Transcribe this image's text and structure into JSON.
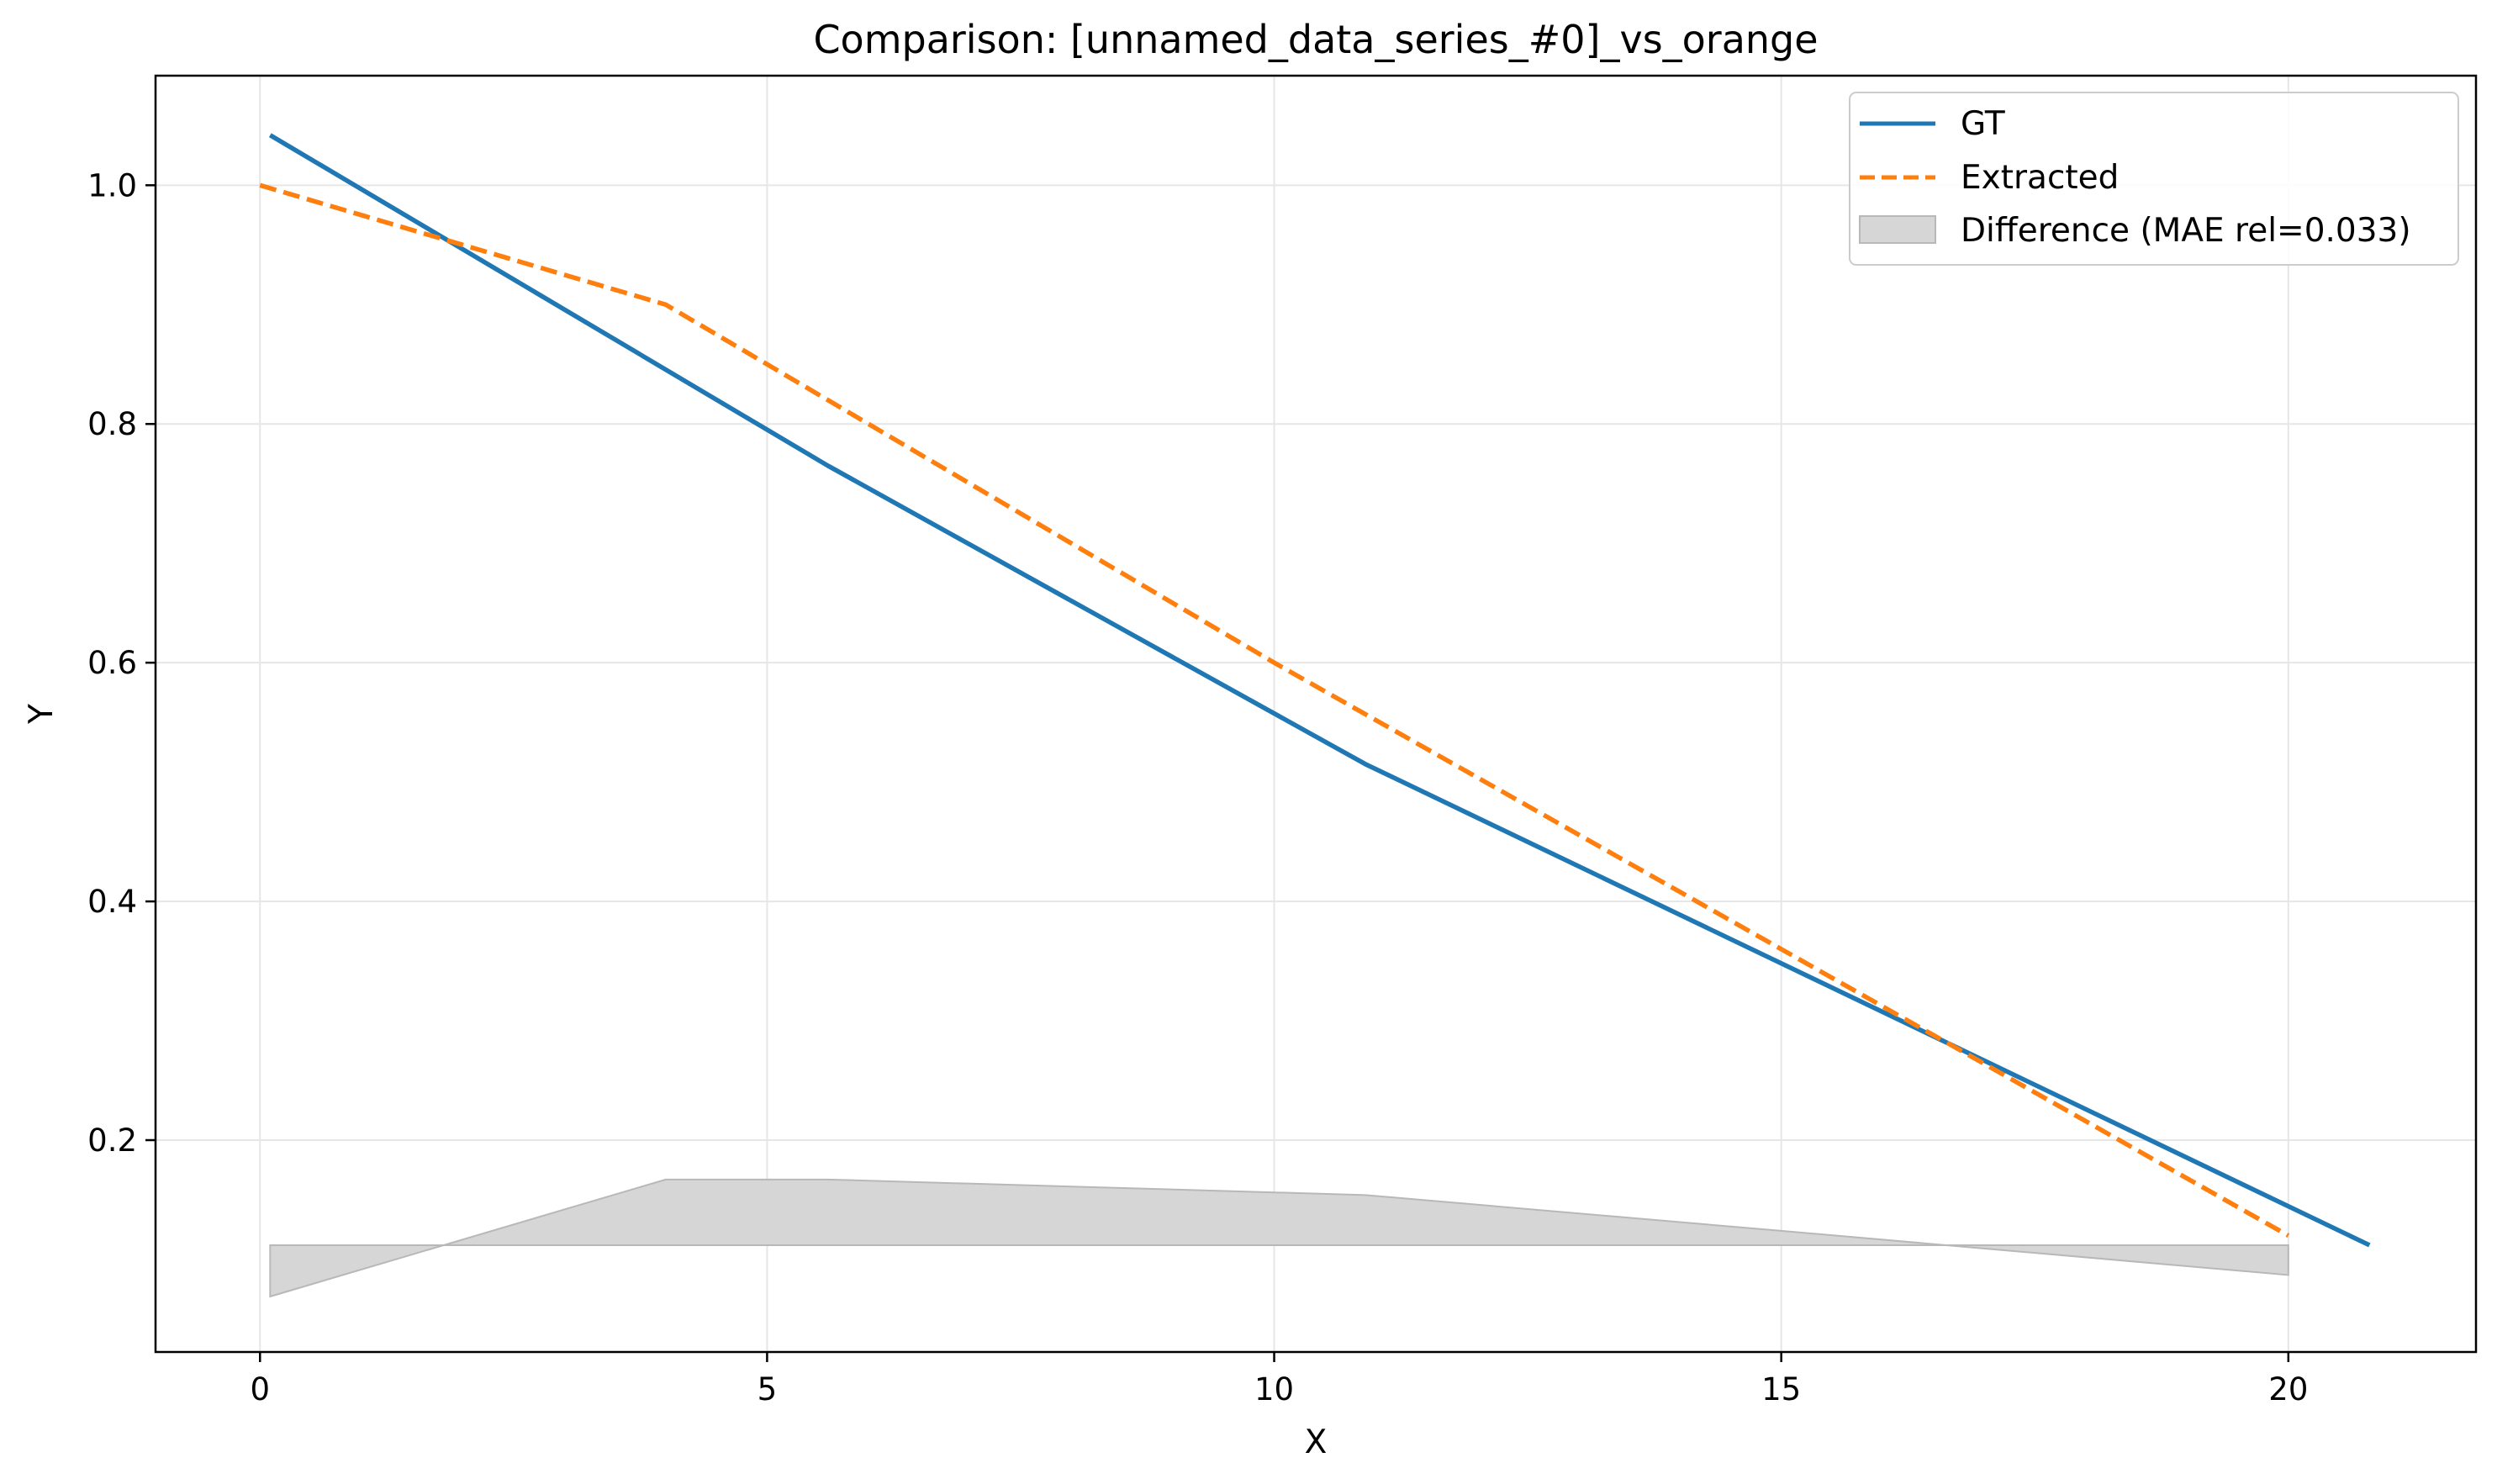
{
  "chart_data": {
    "type": "line",
    "title": "Comparison: [unnamed_data_series_#0]_vs_orange",
    "xlabel": "X",
    "ylabel": "Y",
    "xlim": [
      -1.03,
      21.85
    ],
    "ylim": [
      0.0225,
      1.0918
    ],
    "xticks": [
      0,
      5,
      10,
      15,
      20
    ],
    "yticks": [
      0.2,
      0.4,
      0.6,
      0.8,
      1.0
    ],
    "xtick_labels": [
      "0",
      "5",
      "10",
      "15",
      "20"
    ],
    "ytick_labels": [
      "0.2",
      "0.4",
      "0.6",
      "0.8",
      "1.0"
    ],
    "grid": true,
    "legend_position": "top-right",
    "series": [
      {
        "name": "GT",
        "style": "solid",
        "color": "#1f77b4",
        "x": [
          0.1,
          5.6,
          10.9,
          20.8
        ],
        "y": [
          1.042,
          0.765,
          0.515,
          0.112
        ]
      },
      {
        "name": "Extracted",
        "style": "dashed",
        "color": "#ff7f0e",
        "x": [
          0.0,
          1.8,
          4.0,
          10.0,
          15.0,
          20.0
        ],
        "y": [
          1.0,
          0.955,
          0.9,
          0.6,
          0.36,
          0.12
        ]
      }
    ],
    "difference": {
      "name": "Difference (MAE rel=0.033)",
      "color": "#d6d6d6",
      "edge_color": "#b8b8b8",
      "baseline": 0.112,
      "x": [
        0.1,
        4.0,
        5.6,
        10.9,
        15.0,
        20.0
      ],
      "y": [
        0.069,
        0.167,
        0.167,
        0.154,
        0.124,
        0.087
      ]
    }
  }
}
